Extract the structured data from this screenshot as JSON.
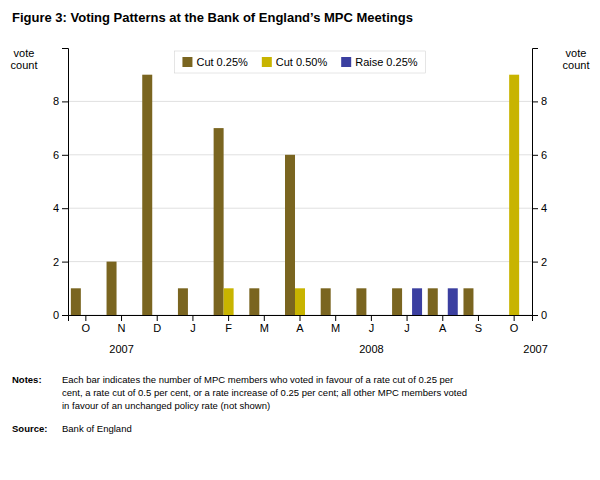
{
  "chart_data": {
    "type": "bar",
    "title": "Figure 3: Voting Patterns at the Bank of England’s MPC Meetings",
    "categories": [
      "O",
      "N",
      "D",
      "J",
      "F",
      "M",
      "A",
      "M",
      "J",
      "J",
      "A",
      "S",
      "O"
    ],
    "series": [
      {
        "name": "Cut 0.25%",
        "color": "#7a6520",
        "values": [
          1,
          2,
          9,
          1,
          7,
          1,
          6,
          1,
          1,
          1,
          1,
          1,
          0
        ]
      },
      {
        "name": "Cut 0.50%",
        "color": "#c8b400",
        "values": [
          0,
          0,
          0,
          0,
          1,
          0,
          1,
          0,
          0,
          0,
          0,
          0,
          9
        ]
      },
      {
        "name": "Raise 0.25%",
        "color": "#3b3fa0",
        "values": [
          0,
          0,
          0,
          0,
          0,
          0,
          0,
          0,
          0,
          1,
          1,
          0,
          0
        ]
      }
    ],
    "y_label": "vote\ncount",
    "y2_label": "vote\ncount",
    "ylim": [
      0,
      10
    ],
    "yticks": [
      0,
      2,
      4,
      6,
      8
    ],
    "y2lim": [
      0,
      10
    ],
    "y2ticks": [
      0,
      2,
      4,
      6,
      8
    ],
    "grid": true,
    "legend": "top",
    "annotations": [
      {
        "text": "2007",
        "x": 1
      },
      {
        "text": "2008",
        "x": 8
      },
      {
        "text": "2007",
        "x": 12.6
      }
    ],
    "footnotes": [
      {
        "label": "Notes:",
        "text": "Each bar indicates the number of MPC members who voted in favour of a rate cut of 0.25 per\ncent, a rate cut of 0.5 per cent, or a rate increase of 0.25 per cent; all other MPC members voted\nin favour of an unchanged policy rate (not shown)"
      },
      {
        "label": "Source:",
        "text": "Bank of England"
      }
    ]
  }
}
